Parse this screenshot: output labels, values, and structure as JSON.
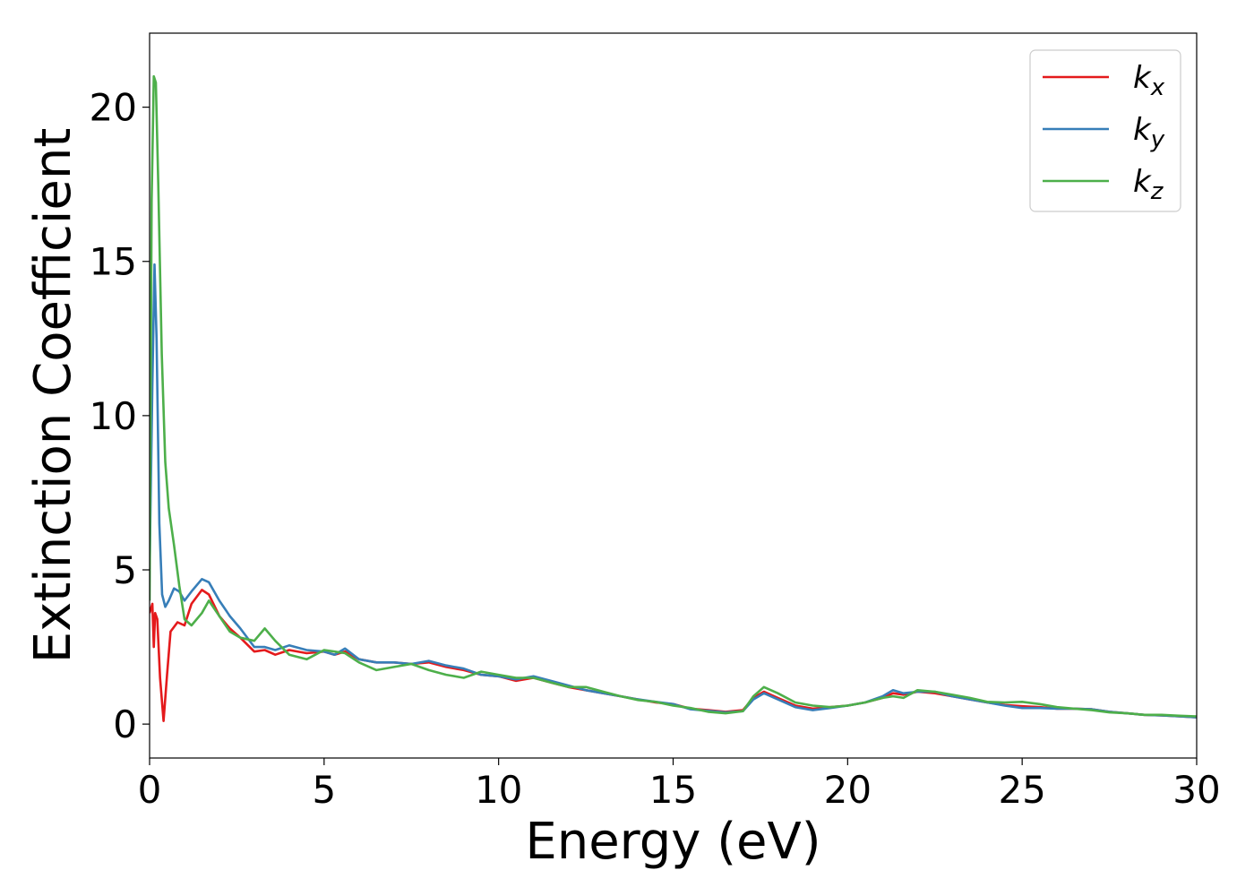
{
  "chart_data": {
    "type": "line",
    "xlabel": "Energy (eV)",
    "ylabel": "Extinction Coefficient",
    "xlim": [
      0,
      30
    ],
    "ylim": [
      -1.1,
      22.4
    ],
    "xticks": [
      0,
      5,
      10,
      15,
      20,
      25,
      30
    ],
    "yticks": [
      0,
      5,
      10,
      15,
      20
    ],
    "grid": false,
    "legend_position": "top-right",
    "series": [
      {
        "name": "kx",
        "legend_main": "k",
        "legend_sub": "x",
        "color": "#e41a1c",
        "x": [
          0.0,
          0.08,
          0.12,
          0.16,
          0.22,
          0.3,
          0.4,
          0.5,
          0.6,
          0.8,
          1.0,
          1.2,
          1.5,
          1.7,
          2.0,
          2.3,
          2.6,
          3.0,
          3.3,
          3.6,
          4.0,
          4.5,
          5.0,
          5.3,
          5.6,
          6.0,
          6.5,
          7.0,
          7.5,
          8.0,
          8.5,
          9.0,
          9.5,
          10.0,
          10.5,
          11.0,
          11.5,
          12.0,
          12.5,
          13.0,
          13.5,
          14.0,
          14.5,
          15.0,
          15.5,
          16.0,
          16.5,
          17.0,
          17.3,
          17.6,
          18.0,
          18.5,
          19.0,
          19.5,
          20.0,
          20.5,
          21.0,
          21.3,
          21.6,
          22.0,
          22.5,
          23.0,
          23.5,
          24.0,
          24.5,
          25.0,
          25.5,
          26.0,
          26.5,
          27.0,
          27.5,
          28.0,
          28.5,
          29.0,
          29.5,
          30.0
        ],
        "values": [
          3.6,
          3.9,
          2.5,
          3.6,
          3.4,
          1.5,
          0.1,
          1.6,
          3.0,
          3.3,
          3.2,
          3.9,
          4.35,
          4.2,
          3.5,
          3.1,
          2.8,
          2.35,
          2.4,
          2.25,
          2.4,
          2.3,
          2.35,
          2.25,
          2.35,
          2.1,
          2.0,
          2.0,
          1.95,
          2.0,
          1.85,
          1.75,
          1.6,
          1.55,
          1.4,
          1.5,
          1.35,
          1.2,
          1.1,
          1.0,
          0.9,
          0.8,
          0.7,
          0.65,
          0.5,
          0.45,
          0.4,
          0.45,
          0.85,
          1.05,
          0.85,
          0.6,
          0.5,
          0.55,
          0.6,
          0.7,
          0.85,
          1.0,
          0.95,
          1.05,
          1.0,
          0.9,
          0.8,
          0.7,
          0.62,
          0.58,
          0.55,
          0.5,
          0.5,
          0.48,
          0.4,
          0.35,
          0.3,
          0.28,
          0.25,
          0.22
        ]
      },
      {
        "name": "ky",
        "legend_main": "k",
        "legend_sub": "y",
        "color": "#377eb8",
        "x": [
          0.0,
          0.08,
          0.14,
          0.2,
          0.28,
          0.36,
          0.45,
          0.55,
          0.7,
          0.85,
          1.0,
          1.2,
          1.5,
          1.7,
          2.0,
          2.3,
          2.6,
          3.0,
          3.3,
          3.6,
          4.0,
          4.5,
          5.0,
          5.3,
          5.6,
          6.0,
          6.5,
          7.0,
          7.5,
          8.0,
          8.5,
          9.0,
          9.5,
          10.0,
          10.5,
          11.0,
          11.5,
          12.0,
          12.5,
          13.0,
          13.5,
          14.0,
          14.5,
          15.0,
          15.5,
          16.0,
          16.5,
          17.0,
          17.3,
          17.6,
          18.0,
          18.5,
          19.0,
          19.5,
          20.0,
          20.5,
          21.0,
          21.3,
          21.6,
          22.0,
          22.5,
          23.0,
          23.5,
          24.0,
          24.5,
          25.0,
          25.5,
          26.0,
          26.5,
          27.0,
          27.5,
          28.0,
          28.5,
          29.0,
          29.5,
          30.0
        ],
        "values": [
          5.0,
          11.0,
          14.9,
          12.5,
          6.5,
          4.2,
          3.8,
          4.0,
          4.4,
          4.3,
          4.0,
          4.3,
          4.7,
          4.6,
          4.0,
          3.5,
          3.1,
          2.5,
          2.5,
          2.4,
          2.55,
          2.4,
          2.35,
          2.25,
          2.45,
          2.1,
          2.0,
          2.0,
          1.95,
          2.05,
          1.9,
          1.8,
          1.6,
          1.55,
          1.45,
          1.55,
          1.4,
          1.25,
          1.1,
          1.0,
          0.9,
          0.8,
          0.72,
          0.65,
          0.48,
          0.43,
          0.38,
          0.42,
          0.8,
          1.0,
          0.8,
          0.55,
          0.45,
          0.52,
          0.6,
          0.7,
          0.9,
          1.1,
          1.0,
          1.05,
          1.05,
          0.9,
          0.8,
          0.7,
          0.6,
          0.52,
          0.52,
          0.5,
          0.5,
          0.48,
          0.4,
          0.35,
          0.3,
          0.28,
          0.25,
          0.22
        ]
      },
      {
        "name": "kz",
        "legend_main": "k",
        "legend_sub": "z",
        "color": "#4daf4a",
        "x": [
          0.0,
          0.06,
          0.12,
          0.18,
          0.25,
          0.35,
          0.45,
          0.55,
          0.7,
          0.85,
          1.0,
          1.2,
          1.5,
          1.7,
          2.0,
          2.3,
          2.6,
          3.0,
          3.3,
          3.6,
          4.0,
          4.5,
          5.0,
          5.3,
          5.6,
          6.0,
          6.5,
          7.0,
          7.5,
          8.0,
          8.5,
          9.0,
          9.5,
          10.0,
          10.5,
          11.0,
          11.5,
          12.0,
          12.5,
          13.0,
          13.5,
          14.0,
          14.5,
          15.0,
          15.5,
          16.0,
          16.5,
          17.0,
          17.3,
          17.6,
          18.0,
          18.5,
          19.0,
          19.5,
          20.0,
          20.5,
          21.0,
          21.3,
          21.6,
          22.0,
          22.5,
          23.0,
          23.5,
          24.0,
          24.5,
          25.0,
          25.5,
          26.0,
          26.5,
          27.0,
          27.5,
          28.0,
          28.5,
          29.0,
          29.5,
          30.0
        ],
        "values": [
          4.0,
          17.0,
          21.0,
          20.8,
          17.5,
          12.0,
          8.5,
          7.0,
          5.8,
          4.5,
          3.4,
          3.2,
          3.6,
          4.0,
          3.5,
          3.0,
          2.8,
          2.7,
          3.1,
          2.7,
          2.25,
          2.1,
          2.4,
          2.35,
          2.3,
          2.0,
          1.75,
          1.85,
          1.95,
          1.75,
          1.6,
          1.5,
          1.7,
          1.6,
          1.5,
          1.5,
          1.35,
          1.2,
          1.2,
          1.05,
          0.9,
          0.78,
          0.72,
          0.6,
          0.52,
          0.4,
          0.35,
          0.42,
          0.9,
          1.2,
          1.0,
          0.7,
          0.6,
          0.55,
          0.6,
          0.7,
          0.85,
          0.9,
          0.85,
          1.1,
          1.05,
          0.95,
          0.85,
          0.72,
          0.7,
          0.72,
          0.65,
          0.55,
          0.5,
          0.45,
          0.38,
          0.35,
          0.3,
          0.3,
          0.27,
          0.25
        ]
      }
    ]
  }
}
